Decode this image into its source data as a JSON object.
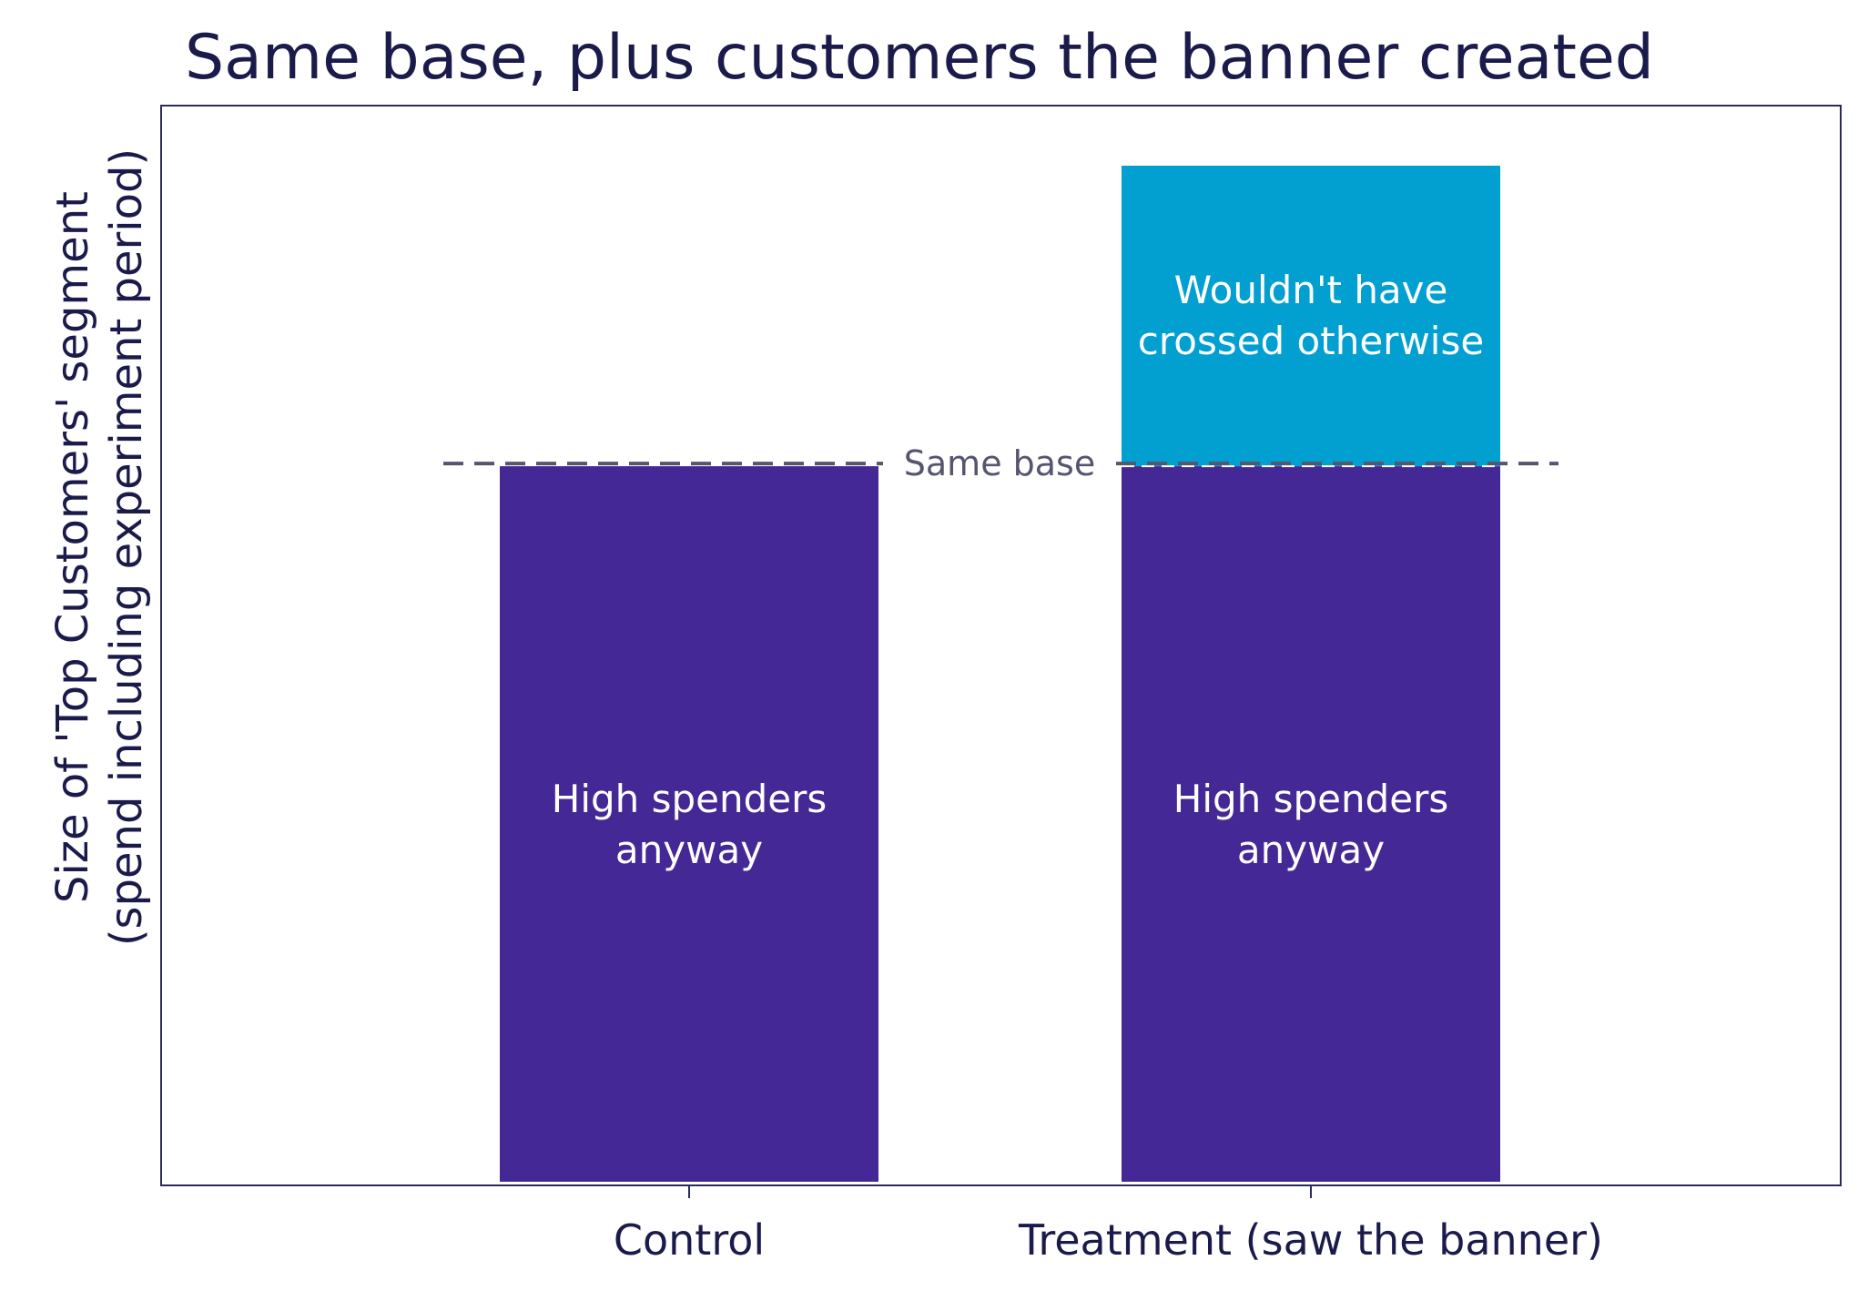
{
  "chart_data": {
    "type": "bar",
    "stacked": true,
    "title": "Same base, plus customers the banner created",
    "ylabel_lines": [
      "Size of 'Top Customers' segment",
      "(spend including experiment period)"
    ],
    "xlabel": "",
    "categories": [
      "Control",
      "Treatment (saw the banner)"
    ],
    "series": [
      {
        "segment_labels": [
          "High spenders\nanyway",
          "High spenders\nanyway"
        ],
        "values": [
          100,
          100
        ],
        "color": "#432896"
      },
      {
        "segment_labels": [
          "",
          "Wouldn't have\ncrossed otherwise"
        ],
        "values": [
          0,
          42
        ],
        "color": "#029fd1"
      }
    ],
    "reference_line": {
      "label": "Same base",
      "value": 100,
      "style": "dashed",
      "color": "#55556f"
    },
    "ylim": [
      0,
      150
    ],
    "yticks": false,
    "grid": false,
    "legend": "none",
    "frame_color": "#2a2a5c"
  }
}
